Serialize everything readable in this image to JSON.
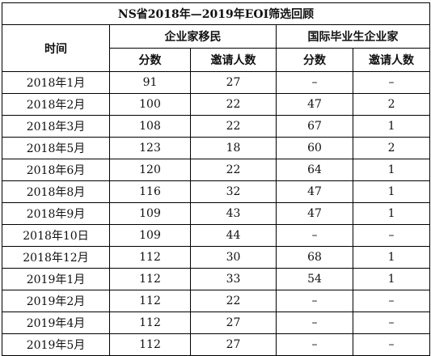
{
  "title": "NS省2018年—2019年EOI筛选回顾",
  "headers": {
    "time": "时间",
    "group1": "企业家移民",
    "group2": "国际毕业生企业家",
    "score": "分数",
    "invites": "邀请人数"
  },
  "rows": [
    {
      "date": "2018年1月",
      "ent_score": "91",
      "ent_inv": "27",
      "grad_score": "–",
      "grad_inv": "–"
    },
    {
      "date": "2018年2月",
      "ent_score": "100",
      "ent_inv": "22",
      "grad_score": "47",
      "grad_inv": "2"
    },
    {
      "date": "2018年3月",
      "ent_score": "108",
      "ent_inv": "22",
      "grad_score": "67",
      "grad_inv": "1"
    },
    {
      "date": "2018年5月",
      "ent_score": "123",
      "ent_inv": "18",
      "grad_score": "60",
      "grad_inv": "2"
    },
    {
      "date": "2018年6月",
      "ent_score": "120",
      "ent_inv": "22",
      "grad_score": "64",
      "grad_inv": "1"
    },
    {
      "date": "2018年8月",
      "ent_score": "116",
      "ent_inv": "32",
      "grad_score": "47",
      "grad_inv": "1"
    },
    {
      "date": "2018年9月",
      "ent_score": "109",
      "ent_inv": "43",
      "grad_score": "47",
      "grad_inv": "1"
    },
    {
      "date": "2018年10日",
      "ent_score": "109",
      "ent_inv": "44",
      "grad_score": "–",
      "grad_inv": "–"
    },
    {
      "date": "2018年12月",
      "ent_score": "112",
      "ent_inv": "30",
      "grad_score": "68",
      "grad_inv": "1"
    },
    {
      "date": "2019年1月",
      "ent_score": "112",
      "ent_inv": "33",
      "grad_score": "54",
      "grad_inv": "1"
    },
    {
      "date": "2019年2月",
      "ent_score": "112",
      "ent_inv": "22",
      "grad_score": "–",
      "grad_inv": "–"
    },
    {
      "date": "2019年4月",
      "ent_score": "112",
      "ent_inv": "27",
      "grad_score": "–",
      "grad_inv": "–"
    },
    {
      "date": "2019年5月",
      "ent_score": "112",
      "ent_inv": "27",
      "grad_score": "–",
      "grad_inv": "–"
    }
  ]
}
